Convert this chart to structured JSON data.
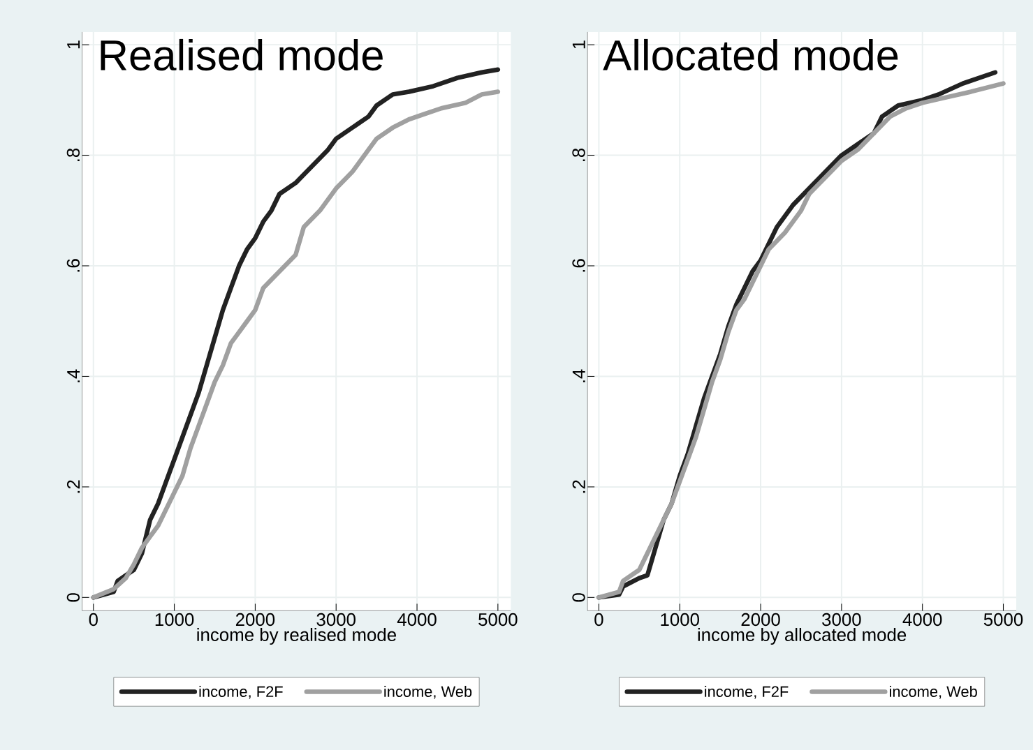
{
  "chart_data": [
    {
      "type": "line",
      "title": "Realised mode",
      "xlabel": "income by realised mode",
      "xlim": [
        -140,
        5160
      ],
      "ylim": [
        -0.024,
        1.023
      ],
      "xticks": [
        0,
        1000,
        2000,
        3000,
        4000,
        5000
      ],
      "yticks": [
        0,
        {
          "value": 0.2,
          "label": ".2"
        },
        {
          "value": 0.4,
          "label": ".4"
        },
        {
          "value": 0.6,
          "label": ".6"
        },
        {
          "value": 0.8,
          "label": ".8"
        },
        1
      ],
      "grid": true,
      "legend": "bottom",
      "series": [
        {
          "name": "income, F2F",
          "color": "#222222",
          "x": [
            0,
            250,
            300,
            500,
            600,
            700,
            800,
            900,
            1000,
            1100,
            1200,
            1300,
            1400,
            1500,
            1600,
            1700,
            1800,
            1900,
            2000,
            2100,
            2200,
            2300,
            2500,
            2700,
            2900,
            3000,
            3200,
            3400,
            3500,
            3700,
            3900,
            4200,
            4500,
            4800,
            5000
          ],
          "values": [
            0,
            0.01,
            0.03,
            0.05,
            0.08,
            0.14,
            0.17,
            0.21,
            0.25,
            0.29,
            0.33,
            0.37,
            0.42,
            0.47,
            0.52,
            0.56,
            0.6,
            0.63,
            0.65,
            0.68,
            0.7,
            0.73,
            0.75,
            0.78,
            0.81,
            0.83,
            0.85,
            0.87,
            0.89,
            0.91,
            0.915,
            0.925,
            0.94,
            0.95,
            0.955
          ]
        },
        {
          "name": "income, Web",
          "color": "#a0a0a0",
          "x": [
            0,
            250,
            400,
            500,
            600,
            700,
            800,
            900,
            1000,
            1100,
            1200,
            1300,
            1400,
            1500,
            1600,
            1700,
            1800,
            1900,
            2000,
            2100,
            2300,
            2500,
            2600,
            2800,
            3000,
            3200,
            3400,
            3500,
            3700,
            3900,
            4100,
            4300,
            4600,
            4800,
            5000
          ],
          "values": [
            0,
            0.015,
            0.035,
            0.06,
            0.09,
            0.11,
            0.13,
            0.16,
            0.19,
            0.22,
            0.27,
            0.31,
            0.35,
            0.39,
            0.42,
            0.46,
            0.48,
            0.5,
            0.52,
            0.56,
            0.59,
            0.62,
            0.67,
            0.7,
            0.74,
            0.77,
            0.81,
            0.83,
            0.85,
            0.865,
            0.875,
            0.885,
            0.895,
            0.91,
            0.915
          ]
        }
      ]
    },
    {
      "type": "line",
      "title": "Allocated mode",
      "xlabel": "income by allocated mode",
      "xlim": [
        -140,
        5160
      ],
      "ylim": [
        -0.024,
        1.023
      ],
      "xticks": [
        0,
        1000,
        2000,
        3000,
        4000,
        5000
      ],
      "yticks": [
        0,
        {
          "value": 0.2,
          "label": ".2"
        },
        {
          "value": 0.4,
          "label": ".4"
        },
        {
          "value": 0.6,
          "label": ".6"
        },
        {
          "value": 0.8,
          "label": ".8"
        },
        1
      ],
      "grid": true,
      "legend": "bottom",
      "series": [
        {
          "name": "income, F2F",
          "color": "#222222",
          "x": [
            0,
            250,
            300,
            500,
            600,
            700,
            800,
            900,
            1000,
            1100,
            1200,
            1300,
            1400,
            1500,
            1600,
            1700,
            1800,
            1900,
            2000,
            2100,
            2200,
            2400,
            2600,
            2800,
            3000,
            3200,
            3400,
            3500,
            3700,
            4000,
            4200,
            4500,
            4900
          ],
          "values": [
            0,
            0.005,
            0.02,
            0.035,
            0.04,
            0.09,
            0.14,
            0.17,
            0.22,
            0.26,
            0.31,
            0.36,
            0.4,
            0.44,
            0.49,
            0.53,
            0.56,
            0.59,
            0.61,
            0.64,
            0.67,
            0.71,
            0.74,
            0.77,
            0.8,
            0.82,
            0.84,
            0.87,
            0.89,
            0.9,
            0.91,
            0.93,
            0.95
          ]
        },
        {
          "name": "income, Web",
          "color": "#a0a0a0",
          "x": [
            0,
            250,
            300,
            500,
            600,
            700,
            800,
            900,
            1000,
            1100,
            1200,
            1300,
            1400,
            1500,
            1600,
            1700,
            1800,
            1900,
            2000,
            2100,
            2300,
            2500,
            2600,
            2800,
            3000,
            3200,
            3400,
            3600,
            3800,
            4000,
            4300,
            4600,
            5000
          ],
          "values": [
            0,
            0.01,
            0.03,
            0.05,
            0.08,
            0.11,
            0.14,
            0.17,
            0.21,
            0.25,
            0.29,
            0.34,
            0.39,
            0.43,
            0.48,
            0.52,
            0.54,
            0.57,
            0.6,
            0.63,
            0.66,
            0.7,
            0.73,
            0.76,
            0.79,
            0.81,
            0.84,
            0.87,
            0.885,
            0.895,
            0.905,
            0.915,
            0.93
          ]
        }
      ]
    }
  ]
}
